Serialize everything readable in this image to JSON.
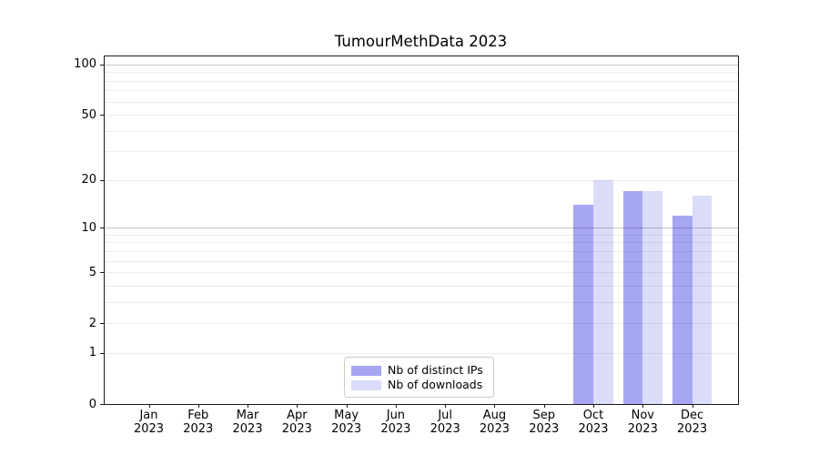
{
  "chart_data": {
    "type": "bar",
    "title": "TumourMethData 2023",
    "categories": [
      {
        "month": "Jan",
        "year": "2023"
      },
      {
        "month": "Feb",
        "year": "2023"
      },
      {
        "month": "Mar",
        "year": "2023"
      },
      {
        "month": "Apr",
        "year": "2023"
      },
      {
        "month": "May",
        "year": "2023"
      },
      {
        "month": "Jun",
        "year": "2023"
      },
      {
        "month": "Jul",
        "year": "2023"
      },
      {
        "month": "Aug",
        "year": "2023"
      },
      {
        "month": "Sep",
        "year": "2023"
      },
      {
        "month": "Oct",
        "year": "2023"
      },
      {
        "month": "Nov",
        "year": "2023"
      },
      {
        "month": "Dec",
        "year": "2023"
      }
    ],
    "series": [
      {
        "name": "Nb of distinct IPs",
        "color": "#a6a6f2",
        "values": [
          0,
          0,
          0,
          0,
          0,
          0,
          0,
          0,
          0,
          14,
          17,
          12
        ]
      },
      {
        "name": "Nb of downloads",
        "color": "#dbdbfa",
        "values": [
          0,
          0,
          0,
          0,
          0,
          0,
          0,
          0,
          0,
          20,
          17,
          16
        ]
      }
    ],
    "xlabel": "",
    "ylabel": "",
    "y_axis": {
      "scale": "log1p",
      "ticks": [
        0,
        1,
        2,
        5,
        10,
        20,
        50,
        100
      ],
      "ylim": [
        0,
        113
      ]
    },
    "gridlines": {
      "minor": [
        1,
        2,
        3,
        4,
        5,
        6,
        7,
        8,
        9,
        20,
        30,
        40,
        50,
        60,
        70,
        80,
        90
      ],
      "major": [
        10,
        100
      ]
    },
    "legend": {
      "position": "lower center",
      "entries": [
        "Nb of distinct IPs",
        "Nb of downloads"
      ]
    }
  }
}
